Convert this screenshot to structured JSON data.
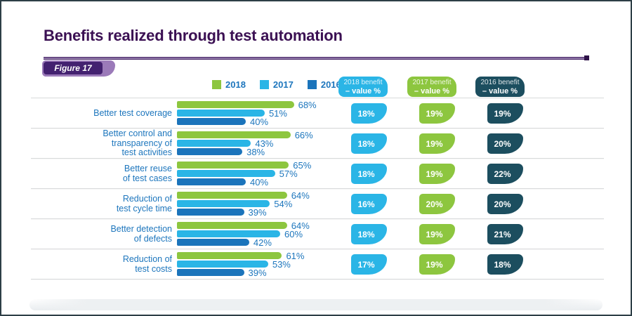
{
  "page": {
    "title": "Benefits realized through test automation",
    "figure_label": "Figure 17"
  },
  "colors": {
    "title_text": "#3b1053",
    "label_text": "#1d76bd",
    "separator": "#d8dadb",
    "figure_badge_outer": "#9b7ab9",
    "figure_badge_inner": "#432170",
    "rule_purple": "#4a2a6a",
    "green_2018": "#8dc63f",
    "cyan_2017": "#2ab5e6",
    "steel_2016": "#1b74bb",
    "dark_teal": "#1c4e5f"
  },
  "legend": {
    "items": [
      {
        "label": "2018",
        "color": "#8dc63f"
      },
      {
        "label": "2017",
        "color": "#2ab5e6"
      },
      {
        "label": "2016",
        "color": "#1b74bb"
      }
    ]
  },
  "value_columns": [
    {
      "title_line1": "2018 benefit",
      "title_line2": "– value %",
      "color": "#2ab5e6"
    },
    {
      "title_line1": "2017 benefit",
      "title_line2": "– value %",
      "color": "#8dc63f"
    },
    {
      "title_line1": "2016 benefit",
      "title_line2": "– value %",
      "color": "#1c4e5f"
    }
  ],
  "chart_data": {
    "type": "bar",
    "orientation": "horizontal",
    "title": "Benefits realized through test automation",
    "legend_position": "top",
    "grid": false,
    "xlim": [
      0,
      100
    ],
    "value_suffix": "%",
    "categories": [
      "Better test coverage",
      "Better control and transparency of test activities",
      "Better reuse of test cases",
      "Reduction of test cycle time",
      "Better detection of defects",
      "Reduction of test costs"
    ],
    "category_lines": [
      [
        "Better test coverage"
      ],
      [
        "Better control and",
        "transparency of",
        "test activities"
      ],
      [
        "Better reuse",
        "of test cases"
      ],
      [
        "Reduction of",
        "test cycle time"
      ],
      [
        "Better detection",
        "of defects"
      ],
      [
        "Reduction of",
        "test costs"
      ]
    ],
    "series": [
      {
        "name": "2018",
        "color": "#8dc63f",
        "values": [
          68,
          66,
          65,
          64,
          64,
          61
        ]
      },
      {
        "name": "2017",
        "color": "#2ab5e6",
        "values": [
          51,
          43,
          57,
          54,
          60,
          53
        ]
      },
      {
        "name": "2016",
        "color": "#1b74bb",
        "values": [
          40,
          38,
          40,
          39,
          42,
          39
        ]
      }
    ],
    "benefit_value_columns": [
      {
        "name": "2018 benefit – value %",
        "color": "#2ab5e6",
        "values": [
          18,
          18,
          18,
          16,
          18,
          17
        ]
      },
      {
        "name": "2017 benefit – value %",
        "color": "#8dc63f",
        "values": [
          19,
          19,
          19,
          20,
          19,
          19
        ]
      },
      {
        "name": "2016 benefit – value %",
        "color": "#1c4e5f",
        "values": [
          19,
          20,
          22,
          20,
          21,
          18
        ]
      }
    ]
  }
}
